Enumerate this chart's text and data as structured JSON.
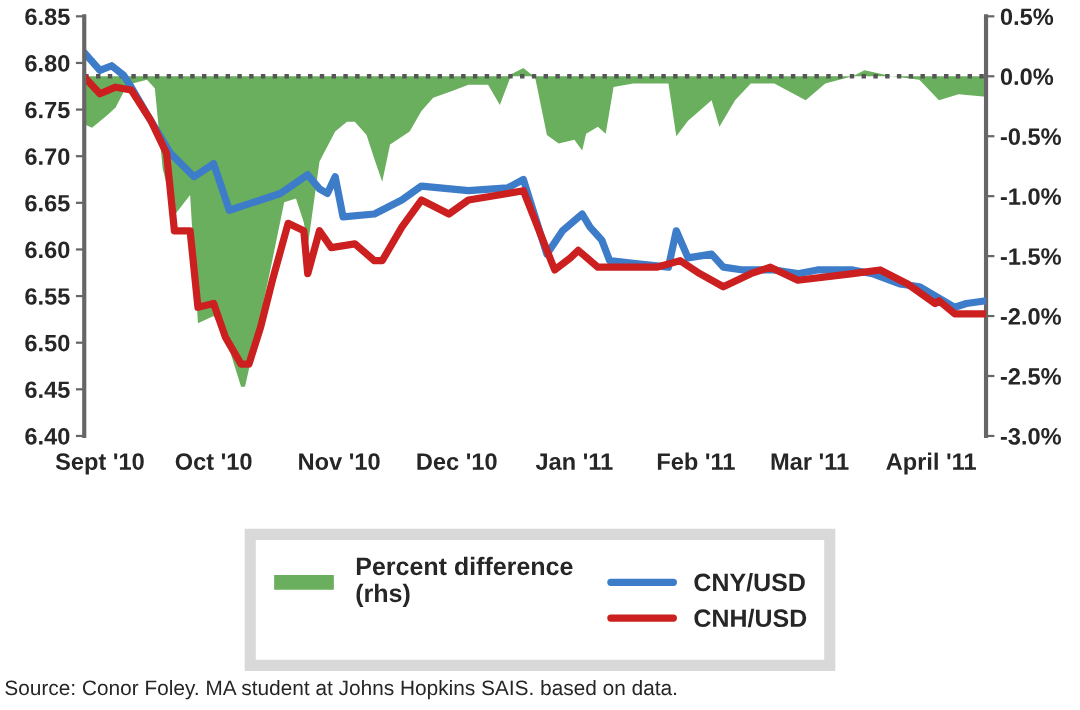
{
  "chart_data": {
    "type": "line",
    "xlim": [
      "2010-09-01",
      "2011-04-19"
    ],
    "xticks": [
      {
        "value": "2010-09-05",
        "label": "Sept '10"
      },
      {
        "value": "2010-10-04",
        "label": "Oct '10"
      },
      {
        "value": "2010-11-05",
        "label": "Nov '10"
      },
      {
        "value": "2010-12-05",
        "label": "Dec '10"
      },
      {
        "value": "2011-01-04",
        "label": "Jan '11"
      },
      {
        "value": "2011-02-04",
        "label": "Feb '11"
      },
      {
        "value": "2011-03-05",
        "label": "Mar '11"
      },
      {
        "value": "2011-04-05",
        "label": "April '11"
      }
    ],
    "ylim": [
      6.4,
      6.85
    ],
    "yticks": [
      {
        "value": 6.4,
        "label": "6.40"
      },
      {
        "value": 6.45,
        "label": "6.45"
      },
      {
        "value": 6.5,
        "label": "6.50"
      },
      {
        "value": 6.55,
        "label": "6.55"
      },
      {
        "value": 6.6,
        "label": "6.60"
      },
      {
        "value": 6.65,
        "label": "6.65"
      },
      {
        "value": 6.7,
        "label": "6.70"
      },
      {
        "value": 6.75,
        "label": "6.75"
      },
      {
        "value": 6.8,
        "label": "6.80"
      },
      {
        "value": 6.85,
        "label": "6.85"
      }
    ],
    "y2lim": [
      -3.0,
      0.5
    ],
    "y2ticks": [
      {
        "value": 0.5,
        "label": "0.5%"
      },
      {
        "value": 0.0,
        "label": "0.0%"
      },
      {
        "value": -0.5,
        "label": "-0.5%"
      },
      {
        "value": -1.0,
        "label": "-1.0%"
      },
      {
        "value": -1.5,
        "label": "-1.5%"
      },
      {
        "value": -2.0,
        "label": "-2.0%"
      },
      {
        "value": -2.5,
        "label": "-2.5%"
      },
      {
        "value": -3.0,
        "label": "-3.0%"
      }
    ],
    "series": [
      {
        "name": "Percent difference (rhs)",
        "type": "area",
        "axis": "y2",
        "color": "#6aaf5e",
        "x": [
          "2010-09-01",
          "2010-09-03",
          "2010-09-07",
          "2010-09-09",
          "2010-09-12",
          "2010-09-17",
          "2010-09-19",
          "2010-09-21",
          "2010-09-24",
          "2010-09-28",
          "2010-09-30",
          "2010-10-04",
          "2010-10-07",
          "2010-10-11",
          "2010-10-12",
          "2010-10-15",
          "2010-10-19",
          "2010-10-22",
          "2010-10-25",
          "2010-10-27",
          "2010-10-28",
          "2010-10-31",
          "2010-11-04",
          "2010-11-07",
          "2010-11-09",
          "2010-11-12",
          "2010-11-14",
          "2010-11-16",
          "2010-11-18",
          "2010-11-23",
          "2010-11-26",
          "2010-11-29",
          "2010-12-04",
          "2010-12-08",
          "2010-12-13",
          "2010-12-16",
          "2010-12-19",
          "2010-12-22",
          "2010-12-25",
          "2010-12-28",
          "2010-12-31",
          "2011-01-04",
          "2011-01-06",
          "2011-01-07",
          "2011-01-10",
          "2011-01-12",
          "2011-01-14",
          "2011-01-19",
          "2011-01-28",
          "2011-01-30",
          "2011-02-02",
          "2011-02-08",
          "2011-02-10",
          "2011-02-14",
          "2011-02-18",
          "2011-02-24",
          "2011-03-04",
          "2011-03-09",
          "2011-03-16",
          "2011-03-19",
          "2011-03-26",
          "2011-04-02",
          "2011-04-07",
          "2011-04-12",
          "2011-04-19"
        ],
        "values": [
          -0.4,
          -0.43,
          -0.32,
          -0.26,
          -0.07,
          -0.03,
          -0.1,
          -0.77,
          -1.16,
          -0.99,
          -2.06,
          -2.0,
          -2.17,
          -2.59,
          -2.59,
          -2.15,
          -1.53,
          -1.05,
          -1.02,
          -1.22,
          -1.42,
          -0.71,
          -0.46,
          -0.38,
          -0.38,
          -0.49,
          -0.69,
          -0.88,
          -0.57,
          -0.46,
          -0.29,
          -0.18,
          -0.12,
          -0.07,
          -0.07,
          -0.24,
          0.02,
          0.07,
          -0.01,
          -0.49,
          -0.56,
          -0.53,
          -0.62,
          -0.48,
          -0.42,
          -0.48,
          -0.09,
          -0.06,
          -0.06,
          -0.5,
          -0.37,
          -0.2,
          -0.42,
          -0.2,
          -0.06,
          -0.06,
          -0.2,
          -0.06,
          0.0,
          0.05,
          0.0,
          -0.03,
          -0.2,
          -0.15,
          -0.17
        ]
      },
      {
        "name": "CNY/USD",
        "color": "#3d7cc9",
        "x": [
          "2010-09-01",
          "2010-09-05",
          "2010-09-08",
          "2010-09-11",
          "2010-09-13",
          "2010-09-18",
          "2010-09-23",
          "2010-09-29",
          "2010-10-04",
          "2010-10-08",
          "2010-10-16",
          "2010-10-21",
          "2010-10-28",
          "2010-10-31",
          "2010-11-02",
          "2010-11-04",
          "2010-11-06",
          "2010-11-14",
          "2010-11-21",
          "2010-11-26",
          "2010-12-08",
          "2010-12-18",
          "2010-12-22",
          "2010-12-25",
          "2010-12-28",
          "2011-01-01",
          "2011-01-06",
          "2011-01-08",
          "2011-01-11",
          "2011-01-13",
          "2011-01-19",
          "2011-01-28",
          "2011-01-30",
          "2011-02-02",
          "2011-02-08",
          "2011-02-11",
          "2011-02-16",
          "2011-02-24",
          "2011-03-02",
          "2011-03-07",
          "2011-03-16",
          "2011-03-21",
          "2011-03-28",
          "2011-04-02",
          "2011-04-11",
          "2011-04-14",
          "2011-04-19"
        ],
        "values": [
          6.811,
          6.792,
          6.797,
          6.787,
          6.774,
          6.738,
          6.703,
          6.678,
          6.692,
          6.642,
          6.653,
          6.66,
          6.68,
          6.665,
          6.66,
          6.678,
          6.635,
          6.638,
          6.653,
          6.668,
          6.663,
          6.666,
          6.675,
          6.635,
          6.595,
          6.62,
          6.638,
          6.624,
          6.61,
          6.588,
          6.585,
          6.581,
          6.62,
          6.591,
          6.595,
          6.581,
          6.578,
          6.578,
          6.574,
          6.578,
          6.578,
          6.574,
          6.563,
          6.56,
          6.538,
          6.542,
          6.545
        ]
      },
      {
        "name": "CNH/USD",
        "color": "#cc1f1f",
        "x": [
          "2010-09-01",
          "2010-09-05",
          "2010-09-09",
          "2010-09-13",
          "2010-09-18",
          "2010-09-22",
          "2010-09-24",
          "2010-09-28",
          "2010-09-30",
          "2010-10-04",
          "2010-10-07",
          "2010-10-11",
          "2010-10-13",
          "2010-10-16",
          "2010-10-19",
          "2010-10-23",
          "2010-10-27",
          "2010-10-28",
          "2010-10-31",
          "2010-11-03",
          "2010-11-09",
          "2010-11-14",
          "2010-11-16",
          "2010-11-21",
          "2010-11-26",
          "2010-12-03",
          "2010-12-08",
          "2010-12-18",
          "2010-12-22",
          "2010-12-25",
          "2010-12-28",
          "2010-12-30",
          "2011-01-03",
          "2011-01-05",
          "2011-01-10",
          "2011-01-25",
          "2011-01-31",
          "2011-02-05",
          "2011-02-11",
          "2011-02-18",
          "2011-02-23",
          "2011-03-02",
          "2011-03-16",
          "2011-03-23",
          "2011-03-30",
          "2011-04-06",
          "2011-04-07",
          "2011-04-11",
          "2011-04-19"
        ],
        "values": [
          6.785,
          6.767,
          6.774,
          6.771,
          6.738,
          6.703,
          6.62,
          6.62,
          6.538,
          6.542,
          6.506,
          6.477,
          6.477,
          6.517,
          6.567,
          6.628,
          6.62,
          6.574,
          6.62,
          6.602,
          6.606,
          6.588,
          6.588,
          6.624,
          6.653,
          6.638,
          6.653,
          6.66,
          6.663,
          6.631,
          6.599,
          6.578,
          6.591,
          6.599,
          6.581,
          6.581,
          6.588,
          6.574,
          6.56,
          6.574,
          6.581,
          6.567,
          6.574,
          6.578,
          6.563,
          6.542,
          6.545,
          6.531,
          6.531
        ]
      }
    ],
    "ref_lines": [
      {
        "axis": "y2",
        "value": 0.0,
        "color": "#555555",
        "line_style": "dotted"
      }
    ],
    "legend": "bottom",
    "annotations": [
      "Source: Conor Foley. MA student at Johns Hopkins SAIS. based on data."
    ]
  }
}
